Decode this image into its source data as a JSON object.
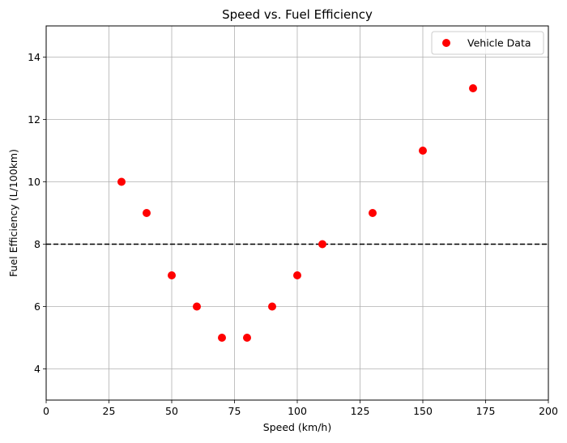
{
  "chart_data": {
    "type": "scatter",
    "title": "Speed vs. Fuel Efficiency",
    "xlabel": "Speed (km/h)",
    "ylabel": "Fuel Efficiency (L/100km)",
    "xlim": [
      0,
      200
    ],
    "ylim": [
      3,
      15
    ],
    "xticks": [
      0,
      25,
      50,
      75,
      100,
      125,
      150,
      175,
      200
    ],
    "yticks": [
      4,
      6,
      8,
      10,
      12,
      14
    ],
    "grid": true,
    "legend_position": "top-right",
    "series": [
      {
        "name": "Vehicle Data",
        "color": "#ff0000",
        "x": [
          30,
          40,
          50,
          60,
          70,
          80,
          90,
          100,
          110,
          130,
          150,
          170
        ],
        "y": [
          10,
          9,
          7,
          6,
          5,
          5,
          6,
          7,
          8,
          9,
          11,
          13
        ]
      }
    ],
    "reference_line": {
      "y": 8,
      "color": "#000000",
      "style": "dashed"
    }
  }
}
